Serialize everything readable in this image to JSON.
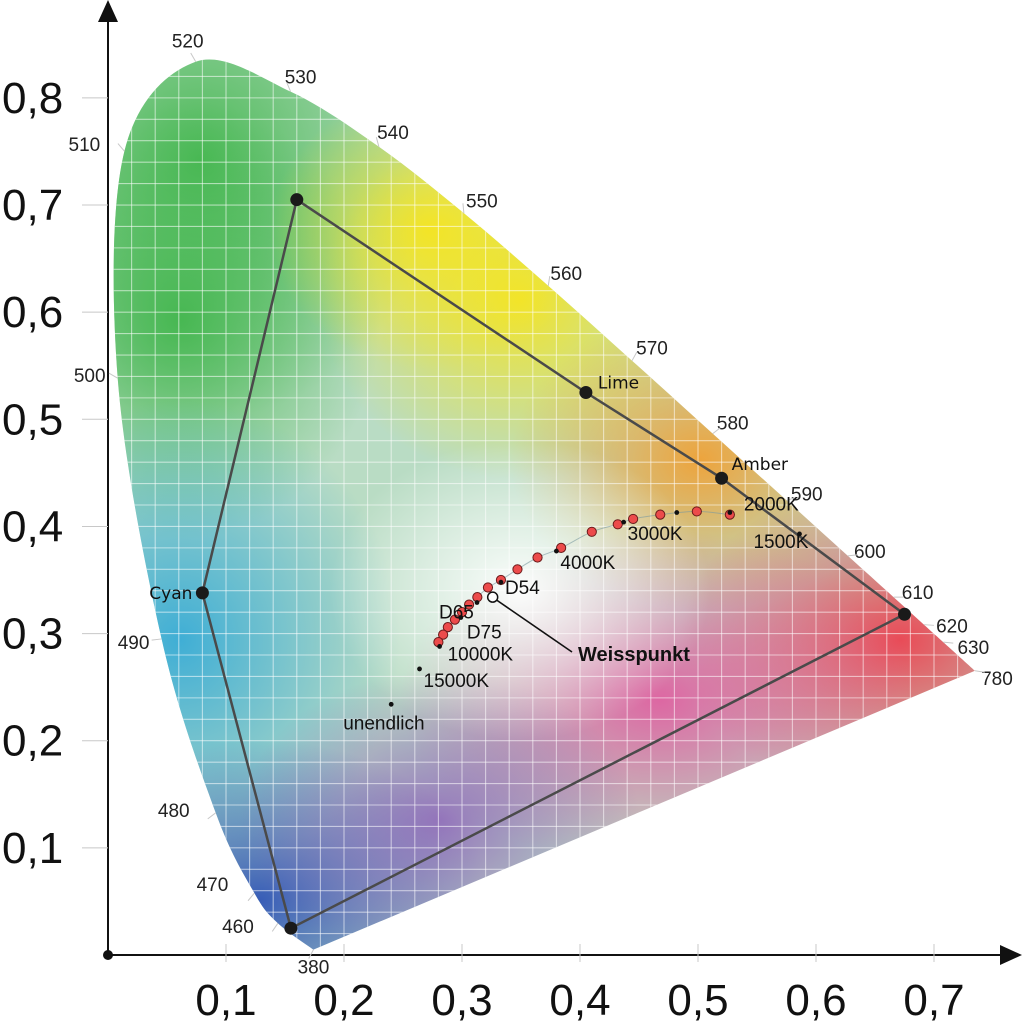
{
  "chart_data": {
    "type": "scatter",
    "subtype": "CIE 1931 chromaticity diagram",
    "title": "",
    "xlabel": "",
    "ylabel": "",
    "xlim": [
      0.0,
      0.77
    ],
    "ylim": [
      0.0,
      0.87
    ],
    "grid": true,
    "x_ticks": [
      0.1,
      0.2,
      0.3,
      0.4,
      0.5,
      0.6,
      0.7
    ],
    "y_ticks": [
      0.1,
      0.2,
      0.3,
      0.4,
      0.5,
      0.6,
      0.7,
      0.8
    ],
    "x_tick_labels": [
      "0,1",
      "0,2",
      "0,3",
      "0,4",
      "0,5",
      "0,6",
      "0,7"
    ],
    "y_tick_labels": [
      "0,1",
      "0,2",
      "0,3",
      "0,4",
      "0,5",
      "0,6",
      "0,7",
      "0,8"
    ],
    "spectral_locus": [
      {
        "label": "380",
        "x": 0.1741,
        "y": 0.005
      },
      {
        "label": "460",
        "x": 0.144,
        "y": 0.0297
      },
      {
        "label": "470",
        "x": 0.1241,
        "y": 0.0578
      },
      {
        "label": "480",
        "x": 0.0913,
        "y": 0.1327
      },
      {
        "label": "490",
        "x": 0.0454,
        "y": 0.295
      },
      {
        "label": "500",
        "x": 0.0082,
        "y": 0.5384
      },
      {
        "label": "510",
        "x": 0.0139,
        "y": 0.7502
      },
      {
        "label": "520",
        "x": 0.0743,
        "y": 0.8338
      },
      {
        "label": "530",
        "x": 0.1547,
        "y": 0.8059
      },
      {
        "label": "540",
        "x": 0.2296,
        "y": 0.7543
      },
      {
        "label": "550",
        "x": 0.3016,
        "y": 0.6923
      },
      {
        "label": "560",
        "x": 0.3731,
        "y": 0.6245
      },
      {
        "label": "570",
        "x": 0.4441,
        "y": 0.5547
      },
      {
        "label": "580",
        "x": 0.5125,
        "y": 0.4866
      },
      {
        "label": "590",
        "x": 0.5752,
        "y": 0.4242
      },
      {
        "label": "600",
        "x": 0.627,
        "y": 0.3725
      },
      {
        "label": "610",
        "x": 0.6658,
        "y": 0.334
      },
      {
        "label": "620",
        "x": 0.6915,
        "y": 0.3083
      },
      {
        "label": "630",
        "x": 0.7079,
        "y": 0.292
      },
      {
        "label": "780",
        "x": 0.7347,
        "y": 0.2653
      }
    ],
    "gamut_primaries": [
      {
        "name": "",
        "x": 0.16,
        "y": 0.705
      },
      {
        "name": "Lime",
        "x": 0.405,
        "y": 0.525
      },
      {
        "name": "Amber",
        "x": 0.52,
        "y": 0.445
      },
      {
        "name": "",
        "x": 0.675,
        "y": 0.318
      },
      {
        "name": "",
        "x": 0.155,
        "y": 0.025
      },
      {
        "name": "Cyan",
        "x": 0.08,
        "y": 0.338
      }
    ],
    "planckian_locus_points": [
      {
        "x": 0.527,
        "y": 0.411
      },
      {
        "x": 0.499,
        "y": 0.414
      },
      {
        "x": 0.468,
        "y": 0.411
      },
      {
        "x": 0.445,
        "y": 0.407
      },
      {
        "x": 0.432,
        "y": 0.402
      },
      {
        "x": 0.41,
        "y": 0.395
      },
      {
        "x": 0.384,
        "y": 0.38
      },
      {
        "x": 0.364,
        "y": 0.371
      },
      {
        "x": 0.347,
        "y": 0.36
      },
      {
        "x": 0.333,
        "y": 0.35
      },
      {
        "x": 0.322,
        "y": 0.343
      },
      {
        "x": 0.313,
        "y": 0.334
      },
      {
        "x": 0.306,
        "y": 0.327
      },
      {
        "x": 0.3,
        "y": 0.32
      },
      {
        "x": 0.294,
        "y": 0.313
      },
      {
        "x": 0.288,
        "y": 0.306
      },
      {
        "x": 0.284,
        "y": 0.299
      },
      {
        "x": 0.28,
        "y": 0.292
      }
    ],
    "reference_points": [
      {
        "label": "2000K",
        "x": 0.527,
        "y": 0.413
      },
      {
        "label": "1500K",
        "x": 0.586,
        "y": 0.393
      },
      {
        "label": "3000K",
        "x": 0.437,
        "y": 0.404
      },
      {
        "label": "4000K",
        "x": 0.38,
        "y": 0.377
      },
      {
        "label": "D54",
        "x": 0.333,
        "y": 0.348
      },
      {
        "label": "D65",
        "x": 0.3127,
        "y": 0.329
      },
      {
        "label": "D75",
        "x": 0.299,
        "y": 0.315
      },
      {
        "label": "10000K",
        "x": 0.281,
        "y": 0.288
      },
      {
        "label": "15000K",
        "x": 0.264,
        "y": 0.267
      },
      {
        "label": "unendlich",
        "x": 0.24,
        "y": 0.234
      }
    ],
    "extra_points": [
      {
        "x": 0.482,
        "y": 0.413
      }
    ],
    "white_point": {
      "label": "Weisspunkt",
      "x": 0.326,
      "y": 0.334
    }
  }
}
